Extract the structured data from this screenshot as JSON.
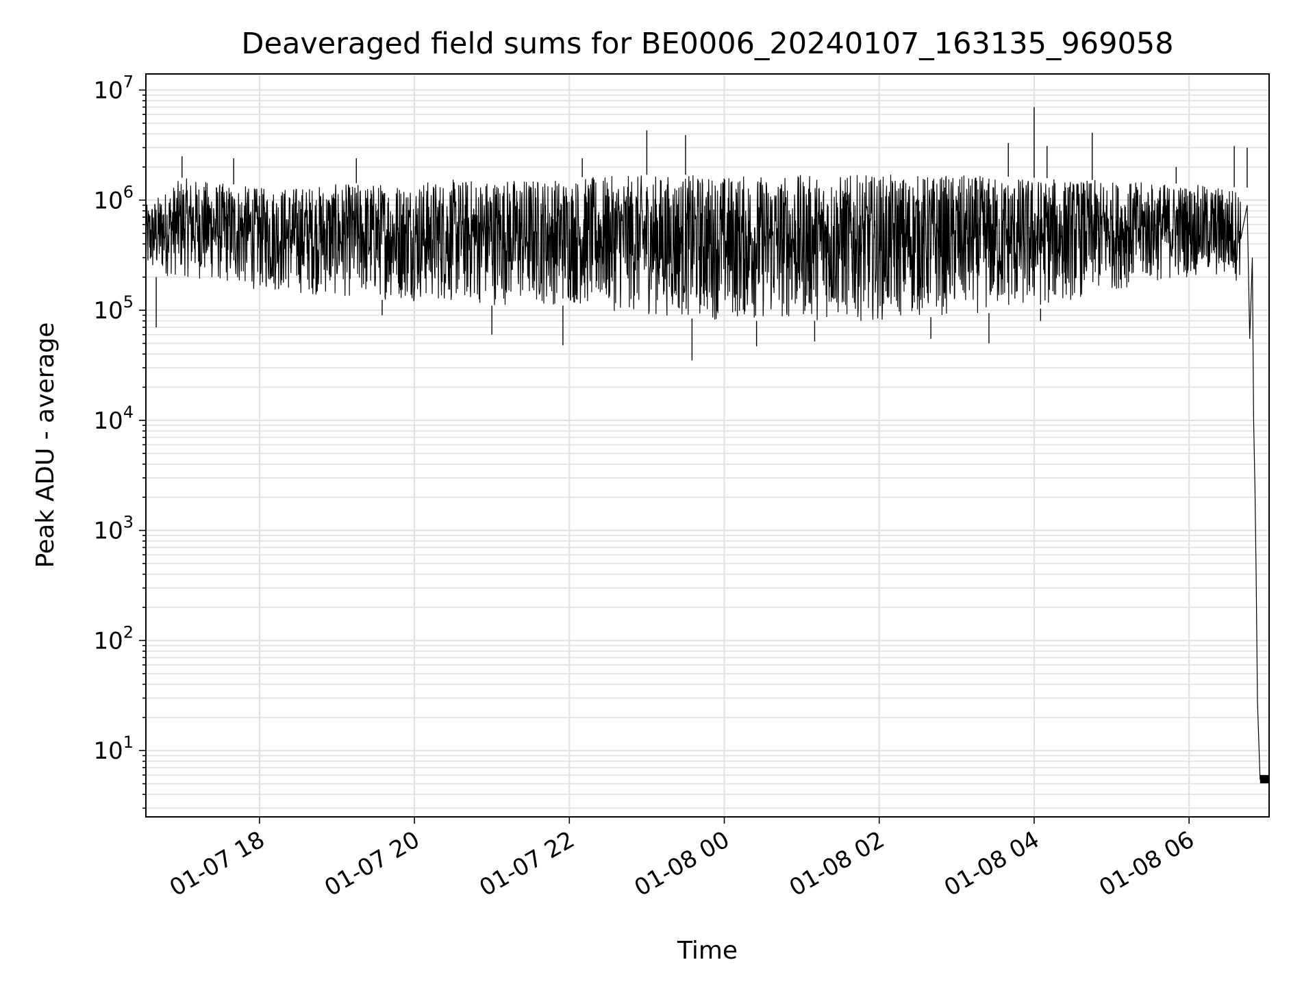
{
  "chart_data": {
    "type": "line",
    "title": "Deaveraged field sums for BE0006_20240107_163135_969058",
    "xlabel": "Time",
    "ylabel": "Peak ADU - average",
    "y_scale": "log",
    "ylim": [
      2.5,
      14000000
    ],
    "xlim": [
      "2024-01-07 16:32",
      "2024-01-08 07:02"
    ],
    "grid": true,
    "x_ticks": [
      {
        "value": "2024-01-07 18:00",
        "label": "01-07 18"
      },
      {
        "value": "2024-01-07 20:00",
        "label": "01-07 20"
      },
      {
        "value": "2024-01-07 22:00",
        "label": "01-07 22"
      },
      {
        "value": "2024-01-08 00:00",
        "label": "01-08 00"
      },
      {
        "value": "2024-01-08 02:00",
        "label": "01-08 02"
      },
      {
        "value": "2024-01-08 04:00",
        "label": "01-08 04"
      },
      {
        "value": "2024-01-08 06:00",
        "label": "01-08 06"
      }
    ],
    "y_ticks": [
      {
        "value": 10,
        "base": "10",
        "exp": "1"
      },
      {
        "value": 100,
        "base": "10",
        "exp": "2"
      },
      {
        "value": 1000,
        "base": "10",
        "exp": "3"
      },
      {
        "value": 10000,
        "base": "10",
        "exp": "4"
      },
      {
        "value": 100000,
        "base": "10",
        "exp": "5"
      },
      {
        "value": 1000000,
        "base": "10",
        "exp": "6"
      },
      {
        "value": 10000000,
        "base": "10",
        "exp": "7"
      }
    ],
    "series": [
      {
        "color": "#000000",
        "envelope": [
          {
            "x": "2024-01-07 16:32",
            "low": 200000,
            "high": 900000
          },
          {
            "x": "2024-01-07 17:00",
            "low": 200000,
            "high": 1600000
          },
          {
            "x": "2024-01-07 18:00",
            "low": 150000,
            "high": 1300000
          },
          {
            "x": "2024-01-07 19:00",
            "low": 130000,
            "high": 1400000
          },
          {
            "x": "2024-01-07 20:00",
            "low": 120000,
            "high": 1500000
          },
          {
            "x": "2024-01-07 21:00",
            "low": 110000,
            "high": 1600000
          },
          {
            "x": "2024-01-07 22:00",
            "low": 110000,
            "high": 1600000
          },
          {
            "x": "2024-01-07 23:00",
            "low": 90000,
            "high": 1700000
          },
          {
            "x": "2024-01-08 00:00",
            "low": 80000,
            "high": 1700000
          },
          {
            "x": "2024-01-08 01:00",
            "low": 80000,
            "high": 1700000
          },
          {
            "x": "2024-01-08 02:00",
            "low": 80000,
            "high": 1700000
          },
          {
            "x": "2024-01-08 03:00",
            "low": 90000,
            "high": 1700000
          },
          {
            "x": "2024-01-08 04:00",
            "low": 100000,
            "high": 1600000
          },
          {
            "x": "2024-01-08 05:00",
            "low": 150000,
            "high": 1500000
          },
          {
            "x": "2024-01-08 06:00",
            "low": 200000,
            "high": 1400000
          },
          {
            "x": "2024-01-08 06:40",
            "low": 180000,
            "high": 1300000
          }
        ],
        "spikes": [
          {
            "x": "2024-01-07 16:40",
            "value": 70000
          },
          {
            "x": "2024-01-07 17:00",
            "value": 2500000
          },
          {
            "x": "2024-01-07 17:40",
            "value": 2400000
          },
          {
            "x": "2024-01-07 19:15",
            "value": 2400000
          },
          {
            "x": "2024-01-07 19:35",
            "value": 90000
          },
          {
            "x": "2024-01-07 21:00",
            "value": 60000
          },
          {
            "x": "2024-01-07 21:55",
            "value": 48000
          },
          {
            "x": "2024-01-07 22:10",
            "value": 2400000
          },
          {
            "x": "2024-01-07 23:00",
            "value": 4300000
          },
          {
            "x": "2024-01-07 23:30",
            "value": 3900000
          },
          {
            "x": "2024-01-07 23:35",
            "value": 35000
          },
          {
            "x": "2024-01-08 00:25",
            "value": 47000
          },
          {
            "x": "2024-01-08 01:10",
            "value": 52000
          },
          {
            "x": "2024-01-08 02:40",
            "value": 55000
          },
          {
            "x": "2024-01-08 03:25",
            "value": 50000
          },
          {
            "x": "2024-01-08 03:40",
            "value": 3300000
          },
          {
            "x": "2024-01-08 04:00",
            "value": 7000000
          },
          {
            "x": "2024-01-08 04:05",
            "value": 80000
          },
          {
            "x": "2024-01-08 04:10",
            "value": 3100000
          },
          {
            "x": "2024-01-08 04:45",
            "value": 4100000
          },
          {
            "x": "2024-01-08 05:50",
            "value": 2000000
          },
          {
            "x": "2024-01-08 06:35",
            "value": 3100000
          },
          {
            "x": "2024-01-08 06:45",
            "value": 3000000
          }
        ],
        "tail": [
          {
            "x": "2024-01-08 06:45",
            "value": 900000
          },
          {
            "x": "2024-01-08 06:47",
            "value": 55000
          },
          {
            "x": "2024-01-08 06:49",
            "value": 300000
          },
          {
            "x": "2024-01-08 06:50",
            "value": 10000
          },
          {
            "x": "2024-01-08 06:51",
            "value": 2500
          },
          {
            "x": "2024-01-08 06:52",
            "value": 380
          },
          {
            "x": "2024-01-08 06:53",
            "value": 28
          },
          {
            "x": "2024-01-08 06:55",
            "value": 5.5
          },
          {
            "x": "2024-01-08 07:02",
            "value": 5.5
          }
        ]
      }
    ]
  }
}
